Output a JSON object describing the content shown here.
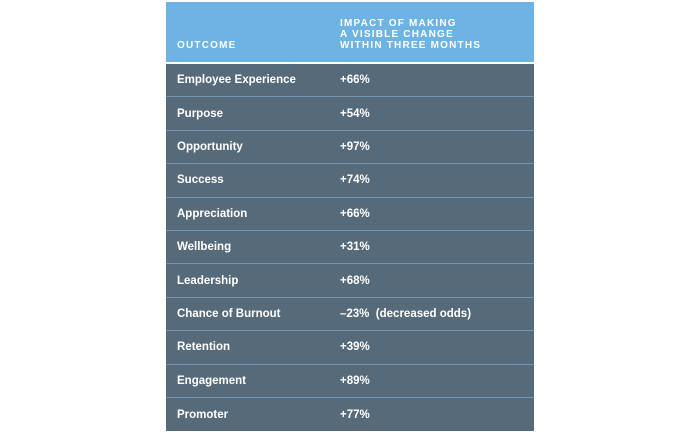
{
  "table": {
    "headers": {
      "outcome": "OUTCOME",
      "impact": "IMPACT OF MAKING\nA VISIBLE CHANGE\nWITHIN THREE MONTHS"
    },
    "rows": [
      {
        "outcome": "Employee Experience",
        "impact": "+66%"
      },
      {
        "outcome": "Purpose",
        "impact": "+54%"
      },
      {
        "outcome": "Opportunity",
        "impact": "+97%"
      },
      {
        "outcome": "Success",
        "impact": "+74%"
      },
      {
        "outcome": "Appreciation",
        "impact": "+66%"
      },
      {
        "outcome": "Wellbeing",
        "impact": "+31%"
      },
      {
        "outcome": "Leadership",
        "impact": "+68%"
      },
      {
        "outcome": "Chance of Burnout",
        "impact": "–23%  (decreased odds)"
      },
      {
        "outcome": "Retention",
        "impact": "+39%"
      },
      {
        "outcome": "Engagement",
        "impact": "+89%"
      },
      {
        "outcome": "Promoter",
        "impact": "+77%"
      }
    ]
  },
  "colors": {
    "header_bg": "#6db3e4",
    "row_bg": "#566a79",
    "row_divider": "#6f95b3",
    "text": "#ffffff"
  }
}
